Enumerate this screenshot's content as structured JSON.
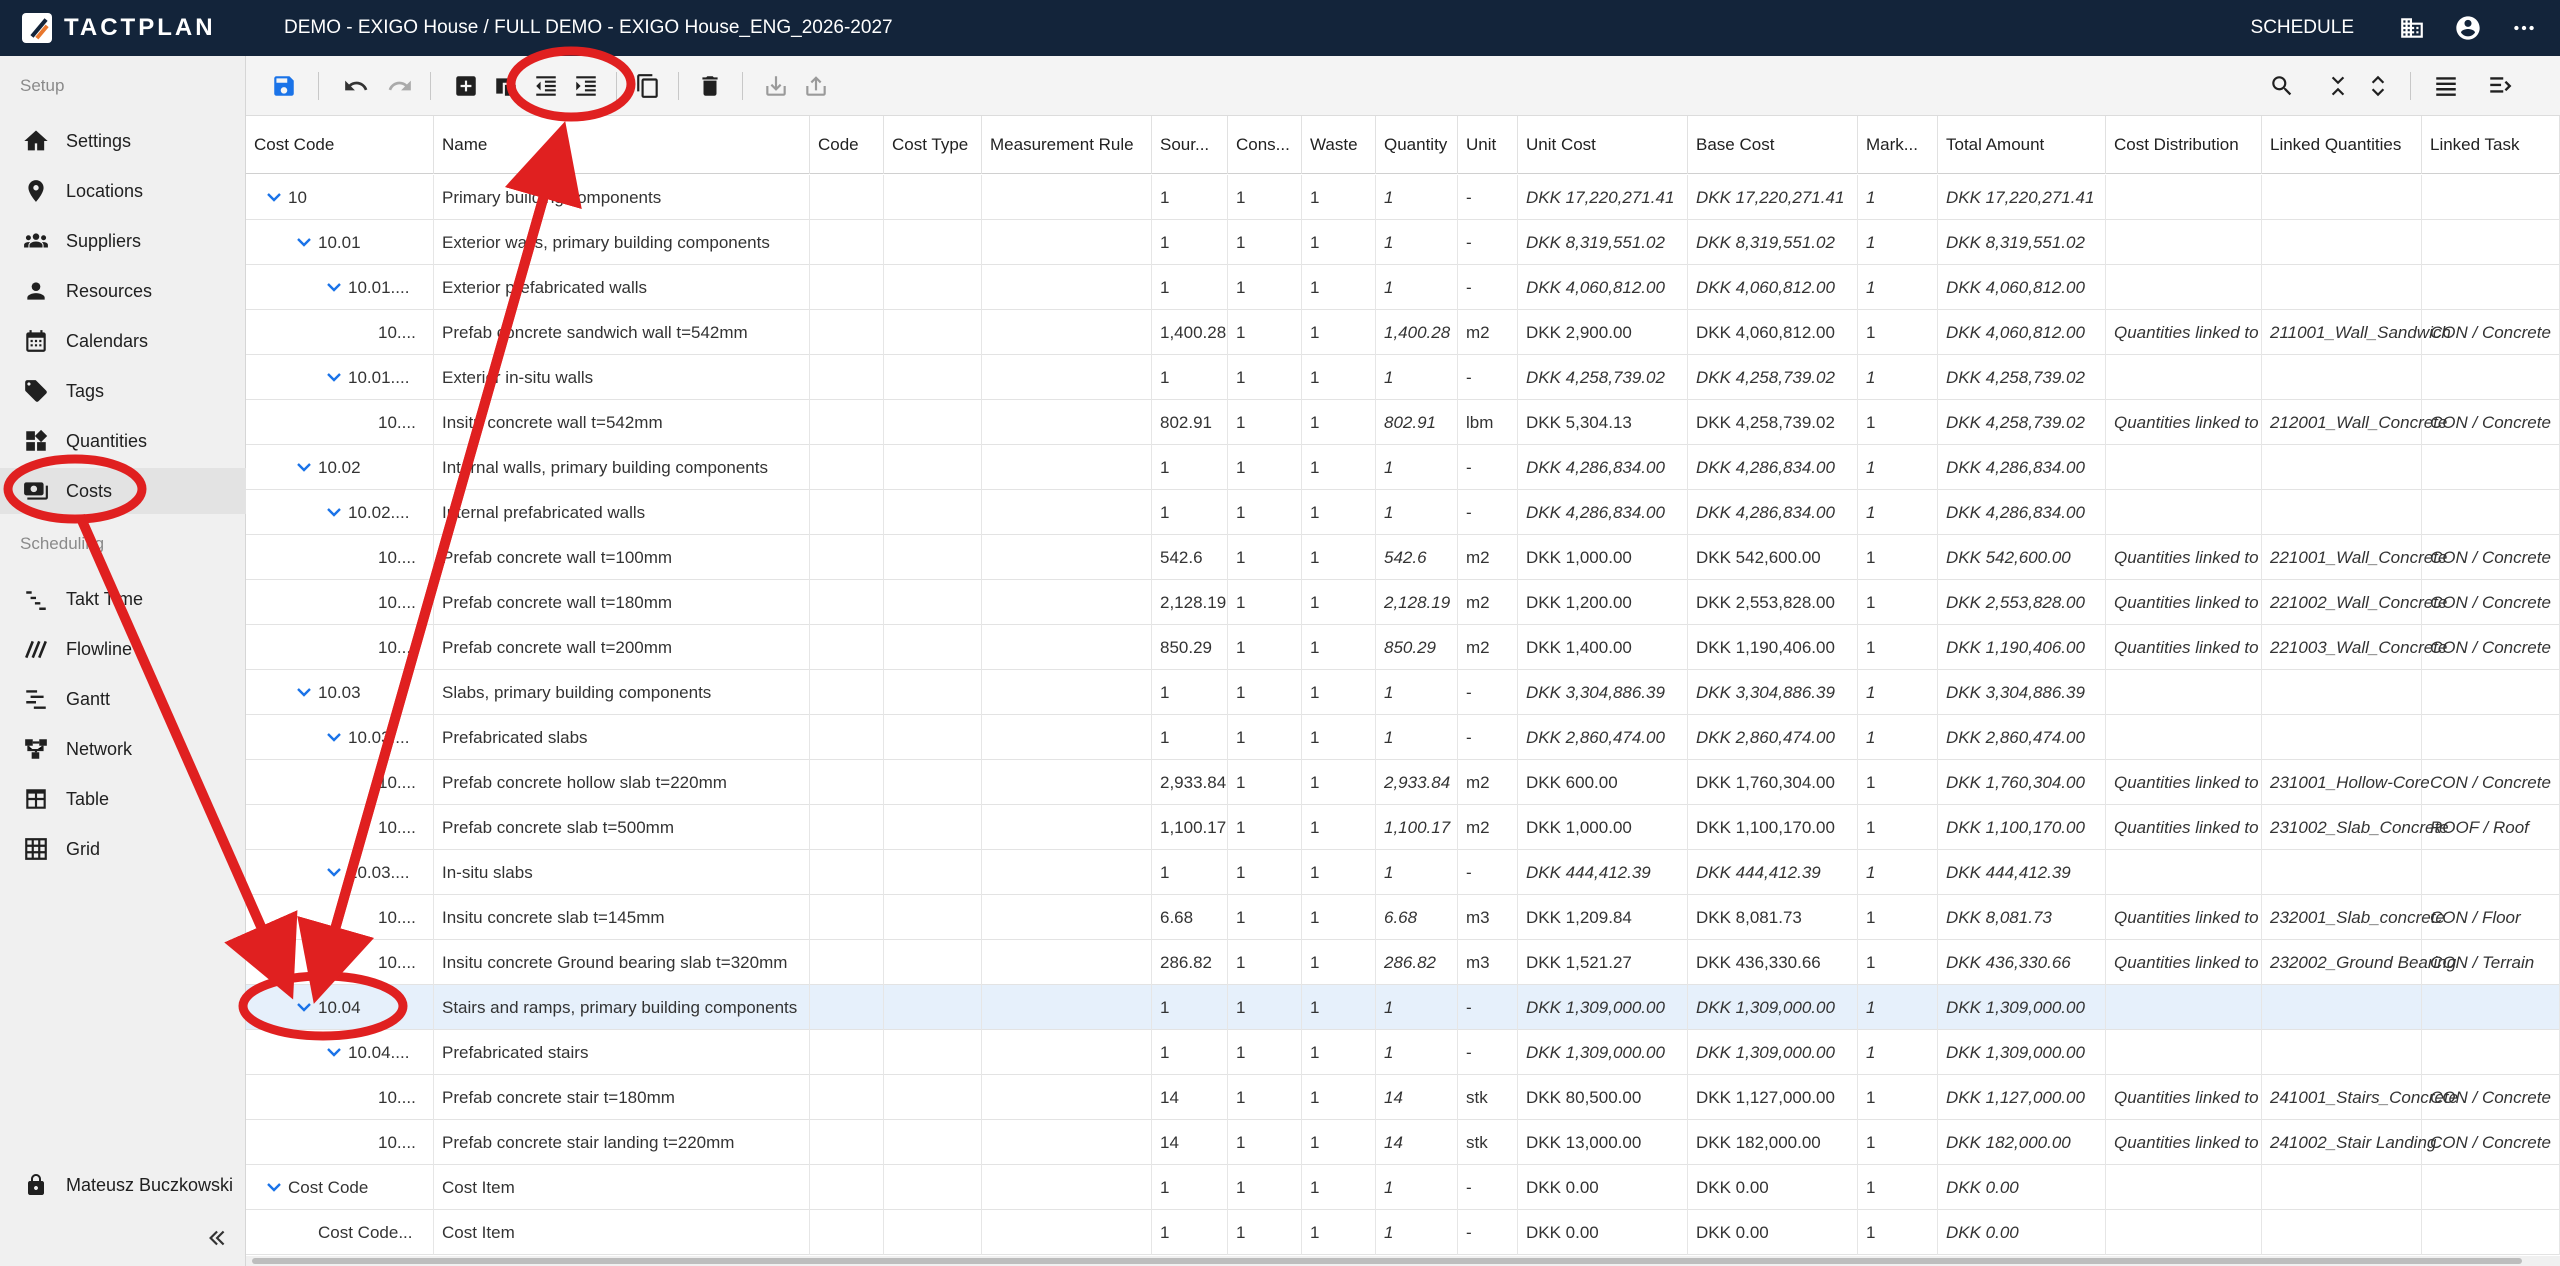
{
  "app": {
    "logo_text": "TACTPLAN",
    "project_title": "DEMO - EXIGO House / FULL DEMO - EXIGO House_ENG_2026-2027",
    "mode_label": "SCHEDULE"
  },
  "sidebar": {
    "setup_label": "Setup",
    "scheduling_label": "Scheduling",
    "setup_items": [
      {
        "label": "Settings",
        "icon": "house-icon"
      },
      {
        "label": "Locations",
        "icon": "location-pin-icon"
      },
      {
        "label": "Suppliers",
        "icon": "group-icon"
      },
      {
        "label": "Resources",
        "icon": "person-icon"
      },
      {
        "label": "Calendars",
        "icon": "calendar-icon"
      },
      {
        "label": "Tags",
        "icon": "tag-icon"
      },
      {
        "label": "Quantities",
        "icon": "widgets-icon"
      },
      {
        "label": "Costs",
        "icon": "money-icon"
      }
    ],
    "scheduling_items": [
      {
        "label": "Takt Time",
        "icon": "takt-icon"
      },
      {
        "label": "Flowline",
        "icon": "flowline-icon"
      },
      {
        "label": "Gantt",
        "icon": "gantt-icon"
      },
      {
        "label": "Network",
        "icon": "network-icon"
      },
      {
        "label": "Table",
        "icon": "table-icon"
      },
      {
        "label": "Grid",
        "icon": "grid-icon"
      }
    ],
    "user_name": "Mateusz Buczkowski"
  },
  "table": {
    "columns": [
      "Cost Code",
      "Name",
      "Code",
      "Cost Type",
      "Measurement Rule",
      "Sour...",
      "Cons...",
      "Waste",
      "Quantity",
      "Unit",
      "Unit Cost",
      "Base Cost",
      "Mark...",
      "Total Amount",
      "Cost Distribution",
      "Linked Quantities",
      "Linked Task"
    ],
    "rows": [
      {
        "code": "10",
        "name": "Primary building components",
        "src": "1",
        "cons": "1",
        "waste": "1",
        "qty": "1",
        "unit": "-",
        "unit_cost": "DKK 17,220,271.41",
        "base": "DKK 17,220,271.41",
        "mark": "1",
        "total": "DKK 17,220,271.41",
        "dist": "",
        "lq": "",
        "lt": ""
      },
      {
        "code": "10.01",
        "name": "Exterior walls, primary building components",
        "src": "1",
        "cons": "1",
        "waste": "1",
        "qty": "1",
        "unit": "-",
        "unit_cost": "DKK 8,319,551.02",
        "base": "DKK 8,319,551.02",
        "mark": "1",
        "total": "DKK 8,319,551.02",
        "dist": "",
        "lq": "",
        "lt": ""
      },
      {
        "code": "10.01....",
        "name": "Exterior prefabricated walls",
        "src": "1",
        "cons": "1",
        "waste": "1",
        "qty": "1",
        "unit": "-",
        "unit_cost": "DKK 4,060,812.00",
        "base": "DKK 4,060,812.00",
        "mark": "1",
        "total": "DKK 4,060,812.00",
        "dist": "",
        "lq": "",
        "lt": ""
      },
      {
        "code": "10....",
        "name": "Prefab concrete sandwich wall t=542mm",
        "src": "1,400.28",
        "cons": "1",
        "waste": "1",
        "qty": "1,400.28",
        "unit": "m2",
        "unit_cost": "DKK 2,900.00",
        "base": "DKK 4,060,812.00",
        "mark": "1",
        "total": "DKK 4,060,812.00",
        "dist": "Quantities linked to",
        "lq": "211001_Wall_Sandwich",
        "lt": "CON / Concrete"
      },
      {
        "code": "10.01....",
        "name": "Exterior in-situ walls",
        "src": "1",
        "cons": "1",
        "waste": "1",
        "qty": "1",
        "unit": "-",
        "unit_cost": "DKK 4,258,739.02",
        "base": "DKK 4,258,739.02",
        "mark": "1",
        "total": "DKK 4,258,739.02",
        "dist": "",
        "lq": "",
        "lt": ""
      },
      {
        "code": "10....",
        "name": "Insitu concrete wall t=542mm",
        "src": "802.91",
        "cons": "1",
        "waste": "1",
        "qty": "802.91",
        "unit": "lbm",
        "unit_cost": "DKK 5,304.13",
        "base": "DKK 4,258,739.02",
        "mark": "1",
        "total": "DKK 4,258,739.02",
        "dist": "Quantities linked to",
        "lq": "212001_Wall_Concrete",
        "lt": "CON / Concrete"
      },
      {
        "code": "10.02",
        "name": "Internal walls, primary building components",
        "src": "1",
        "cons": "1",
        "waste": "1",
        "qty": "1",
        "unit": "-",
        "unit_cost": "DKK 4,286,834.00",
        "base": "DKK 4,286,834.00",
        "mark": "1",
        "total": "DKK 4,286,834.00",
        "dist": "",
        "lq": "",
        "lt": ""
      },
      {
        "code": "10.02....",
        "name": "Internal prefabricated walls",
        "src": "1",
        "cons": "1",
        "waste": "1",
        "qty": "1",
        "unit": "-",
        "unit_cost": "DKK 4,286,834.00",
        "base": "DKK 4,286,834.00",
        "mark": "1",
        "total": "DKK 4,286,834.00",
        "dist": "",
        "lq": "",
        "lt": ""
      },
      {
        "code": "10....",
        "name": "Prefab concrete wall t=100mm",
        "src": "542.6",
        "cons": "1",
        "waste": "1",
        "qty": "542.6",
        "unit": "m2",
        "unit_cost": "DKK 1,000.00",
        "base": "DKK 542,600.00",
        "mark": "1",
        "total": "DKK 542,600.00",
        "dist": "Quantities linked to",
        "lq": "221001_Wall_Concrete",
        "lt": "CON / Concrete"
      },
      {
        "code": "10....",
        "name": "Prefab concrete wall t=180mm",
        "src": "2,128.19",
        "cons": "1",
        "waste": "1",
        "qty": "2,128.19",
        "unit": "m2",
        "unit_cost": "DKK 1,200.00",
        "base": "DKK 2,553,828.00",
        "mark": "1",
        "total": "DKK 2,553,828.00",
        "dist": "Quantities linked to",
        "lq": "221002_Wall_Concrete",
        "lt": "CON / Concrete"
      },
      {
        "code": "10....",
        "name": "Prefab concrete wall t=200mm",
        "src": "850.29",
        "cons": "1",
        "waste": "1",
        "qty": "850.29",
        "unit": "m2",
        "unit_cost": "DKK 1,400.00",
        "base": "DKK 1,190,406.00",
        "mark": "1",
        "total": "DKK 1,190,406.00",
        "dist": "Quantities linked to",
        "lq": "221003_Wall_Concrete",
        "lt": "CON / Concrete"
      },
      {
        "code": "10.03",
        "name": "Slabs, primary building components",
        "src": "1",
        "cons": "1",
        "waste": "1",
        "qty": "1",
        "unit": "-",
        "unit_cost": "DKK 3,304,886.39",
        "base": "DKK 3,304,886.39",
        "mark": "1",
        "total": "DKK 3,304,886.39",
        "dist": "",
        "lq": "",
        "lt": ""
      },
      {
        "code": "10.03....",
        "name": "Prefabricated slabs",
        "src": "1",
        "cons": "1",
        "waste": "1",
        "qty": "1",
        "unit": "-",
        "unit_cost": "DKK 2,860,474.00",
        "base": "DKK 2,860,474.00",
        "mark": "1",
        "total": "DKK 2,860,474.00",
        "dist": "",
        "lq": "",
        "lt": ""
      },
      {
        "code": "10....",
        "name": "Prefab concrete hollow slab t=220mm",
        "src": "2,933.84",
        "cons": "1",
        "waste": "1",
        "qty": "2,933.84",
        "unit": "m2",
        "unit_cost": "DKK 600.00",
        "base": "DKK 1,760,304.00",
        "mark": "1",
        "total": "DKK 1,760,304.00",
        "dist": "Quantities linked to",
        "lq": "231001_Hollow-Core",
        "lt": "CON / Concrete"
      },
      {
        "code": "10....",
        "name": "Prefab concrete slab t=500mm",
        "src": "1,100.17",
        "cons": "1",
        "waste": "1",
        "qty": "1,100.17",
        "unit": "m2",
        "unit_cost": "DKK 1,000.00",
        "base": "DKK 1,100,170.00",
        "mark": "1",
        "total": "DKK 1,100,170.00",
        "dist": "Quantities linked to",
        "lq": "231002_Slab_Concrete",
        "lt": "ROOF / Roof"
      },
      {
        "code": "10.03....",
        "name": "In-situ slabs",
        "src": "1",
        "cons": "1",
        "waste": "1",
        "qty": "1",
        "unit": "-",
        "unit_cost": "DKK 444,412.39",
        "base": "DKK 444,412.39",
        "mark": "1",
        "total": "DKK 444,412.39",
        "dist": "",
        "lq": "",
        "lt": ""
      },
      {
        "code": "10....",
        "name": "Insitu concrete slab t=145mm",
        "src": "6.68",
        "cons": "1",
        "waste": "1",
        "qty": "6.68",
        "unit": "m3",
        "unit_cost": "DKK 1,209.84",
        "base": "DKK 8,081.73",
        "mark": "1",
        "total": "DKK 8,081.73",
        "dist": "Quantities linked to",
        "lq": "232001_Slab_concrete",
        "lt": "CON / Floor"
      },
      {
        "code": "10....",
        "name": "Insitu concrete Ground bearing slab t=320mm",
        "src": "286.82",
        "cons": "1",
        "waste": "1",
        "qty": "286.82",
        "unit": "m3",
        "unit_cost": "DKK 1,521.27",
        "base": "DKK 436,330.66",
        "mark": "1",
        "total": "DKK 436,330.66",
        "dist": "Quantities linked to",
        "lq": "232002_Ground Bearing",
        "lt": "CON / Terrain"
      },
      {
        "code": "10.04",
        "name": "Stairs and ramps, primary building components",
        "src": "1",
        "cons": "1",
        "waste": "1",
        "qty": "1",
        "unit": "-",
        "unit_cost": "DKK 1,309,000.00",
        "base": "DKK 1,309,000.00",
        "mark": "1",
        "total": "DKK 1,309,000.00",
        "dist": "",
        "lq": "",
        "lt": ""
      },
      {
        "code": "10.04....",
        "name": "Prefabricated stairs",
        "src": "1",
        "cons": "1",
        "waste": "1",
        "qty": "1",
        "unit": "-",
        "unit_cost": "DKK 1,309,000.00",
        "base": "DKK 1,309,000.00",
        "mark": "1",
        "total": "DKK 1,309,000.00",
        "dist": "",
        "lq": "",
        "lt": ""
      },
      {
        "code": "10....",
        "name": "Prefab concrete stair t=180mm",
        "src": "14",
        "cons": "1",
        "waste": "1",
        "qty": "14",
        "unit": "stk",
        "unit_cost": "DKK 80,500.00",
        "base": "DKK 1,127,000.00",
        "mark": "1",
        "total": "DKK 1,127,000.00",
        "dist": "Quantities linked to",
        "lq": "241001_Stairs_Concrete",
        "lt": "CON / Concrete"
      },
      {
        "code": "10....",
        "name": "Prefab concrete stair landing t=220mm",
        "src": "14",
        "cons": "1",
        "waste": "1",
        "qty": "14",
        "unit": "stk",
        "unit_cost": "DKK 13,000.00",
        "base": "DKK 182,000.00",
        "mark": "1",
        "total": "DKK 182,000.00",
        "dist": "Quantities linked to",
        "lq": "241002_Stair Landing",
        "lt": "CON / Concrete"
      },
      {
        "code": "Cost Code",
        "name": "Cost Item",
        "src": "1",
        "cons": "1",
        "waste": "1",
        "qty": "1",
        "unit": "-",
        "unit_cost": "DKK 0.00",
        "base": "DKK 0.00",
        "mark": "1",
        "total": "DKK 0.00",
        "dist": "",
        "lq": "",
        "lt": ""
      },
      {
        "code": "Cost Code...",
        "name": "Cost Item",
        "src": "1",
        "cons": "1",
        "waste": "1",
        "qty": "1",
        "unit": "-",
        "unit_cost": "DKK 0.00",
        "base": "DKK 0.00",
        "mark": "1",
        "total": "DKK 0.00",
        "dist": "",
        "lq": "",
        "lt": ""
      }
    ]
  },
  "colors": {
    "topbar": "#13243a",
    "accent": "#1a73e8",
    "annotation": "#e02020",
    "selected_row": "#e6f0fb"
  }
}
